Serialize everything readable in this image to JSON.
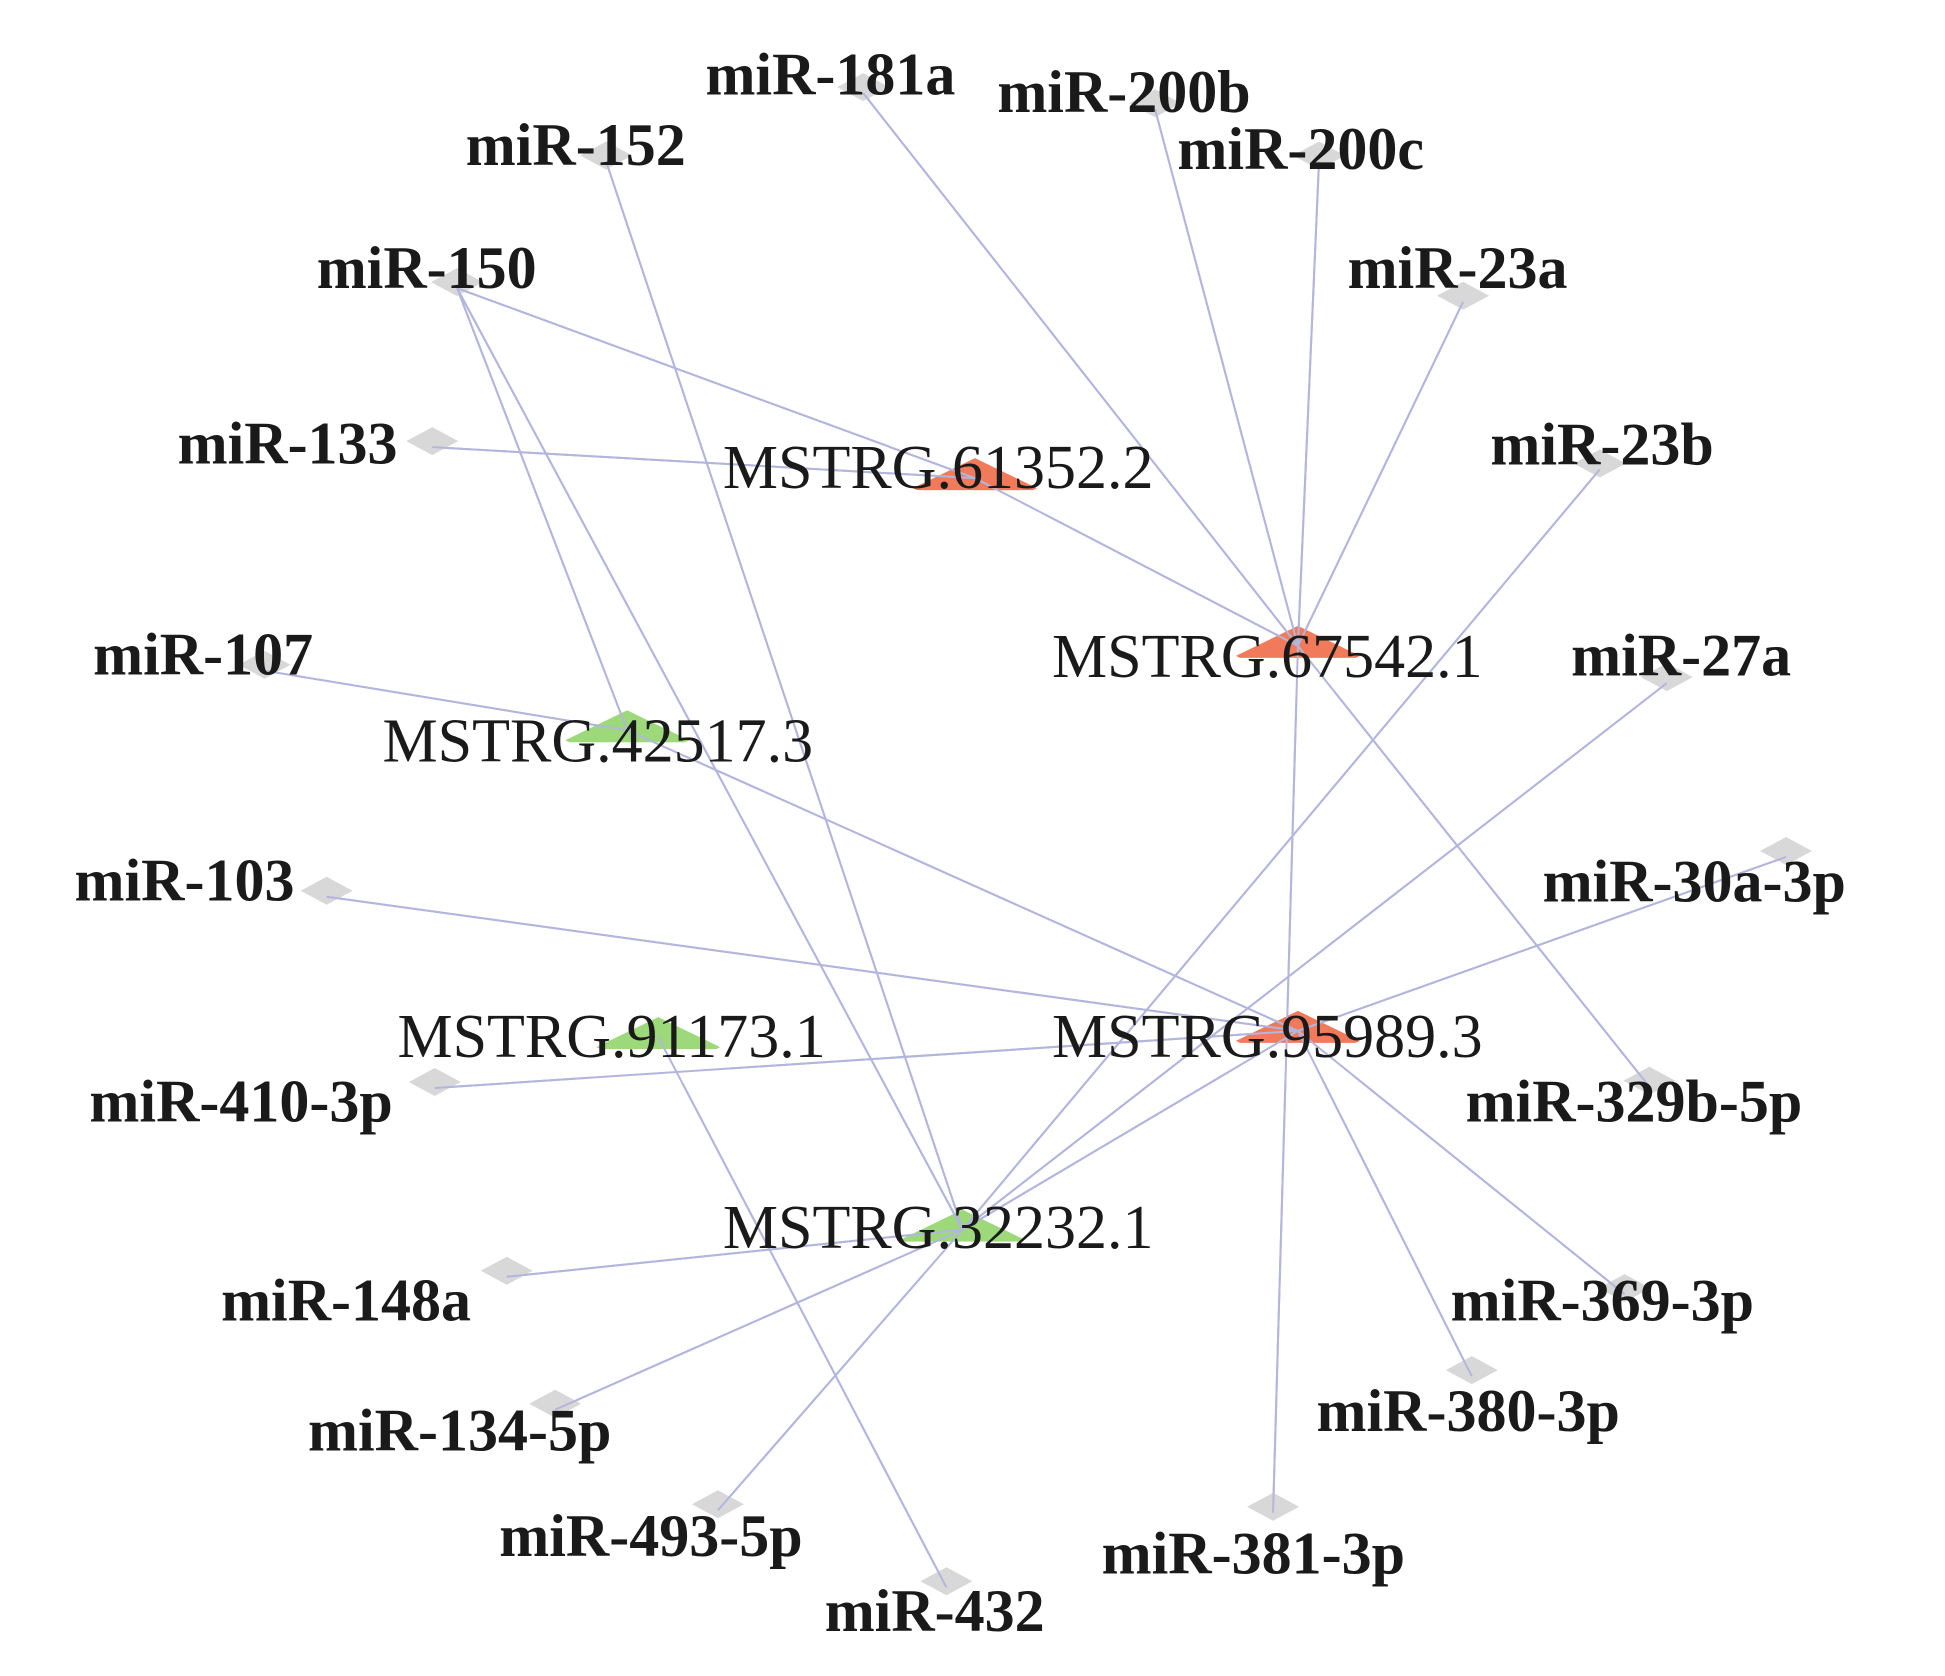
{
  "colors": {
    "edge": "#b3b6dc",
    "mirna_node": "#d8d8d8",
    "lnc_up": "#f07a5a",
    "lnc_down": "#9dd97a"
  },
  "lncrnas": [
    {
      "id": "61352",
      "label": "MSTRG.61352.2",
      "group": "up"
    },
    {
      "id": "67542",
      "label": "MSTRG.67542.1",
      "group": "up"
    },
    {
      "id": "95989",
      "label": "MSTRG.95989.3",
      "group": "up"
    },
    {
      "id": "42517",
      "label": "MSTRG.42517.3",
      "group": "down"
    },
    {
      "id": "91173",
      "label": "MSTRG.91173.1",
      "group": "down"
    },
    {
      "id": "32232",
      "label": "MSTRG.32232.1",
      "group": "down"
    }
  ],
  "mirnas": [
    {
      "id": "181a",
      "label": "miR-181a"
    },
    {
      "id": "200b",
      "label": "miR-200b"
    },
    {
      "id": "200c",
      "label": "miR-200c"
    },
    {
      "id": "152",
      "label": "miR-152"
    },
    {
      "id": "150",
      "label": "miR-150"
    },
    {
      "id": "23a",
      "label": "miR-23a"
    },
    {
      "id": "133",
      "label": "miR-133"
    },
    {
      "id": "23b",
      "label": "miR-23b"
    },
    {
      "id": "107",
      "label": "miR-107"
    },
    {
      "id": "27a",
      "label": "miR-27a"
    },
    {
      "id": "103",
      "label": "miR-103"
    },
    {
      "id": "30a",
      "label": "miR-30a-3p"
    },
    {
      "id": "410",
      "label": "miR-410-3p"
    },
    {
      "id": "329b",
      "label": "miR-329b-5p"
    },
    {
      "id": "148a",
      "label": "miR-148a"
    },
    {
      "id": "369",
      "label": "miR-369-3p"
    },
    {
      "id": "134",
      "label": "miR-134-5p"
    },
    {
      "id": "380",
      "label": "miR-380-3p"
    },
    {
      "id": "493",
      "label": "miR-493-5p"
    },
    {
      "id": "381",
      "label": "miR-381-3p"
    },
    {
      "id": "432",
      "label": "miR-432"
    }
  ],
  "edges": [
    [
      "150",
      "61352"
    ],
    [
      "133",
      "61352"
    ],
    [
      "150",
      "42517"
    ],
    [
      "150",
      "32232"
    ],
    [
      "152",
      "32232"
    ],
    [
      "181a",
      "67542"
    ],
    [
      "200b",
      "67542"
    ],
    [
      "200c",
      "67542"
    ],
    [
      "23a",
      "67542"
    ],
    [
      "61352",
      "67542"
    ],
    [
      "67542",
      "329b"
    ],
    [
      "67542",
      "381"
    ],
    [
      "23b",
      "32232"
    ],
    [
      "27a",
      "32232"
    ],
    [
      "107",
      "42517"
    ],
    [
      "42517",
      "95989"
    ],
    [
      "103",
      "95989"
    ],
    [
      "30a",
      "95989"
    ],
    [
      "95989",
      "410"
    ],
    [
      "95989",
      "32232"
    ],
    [
      "95989",
      "369"
    ],
    [
      "95989",
      "380"
    ],
    [
      "91173",
      "432"
    ],
    [
      "148a",
      "32232"
    ],
    [
      "134",
      "32232"
    ],
    [
      "493",
      "32232"
    ]
  ]
}
